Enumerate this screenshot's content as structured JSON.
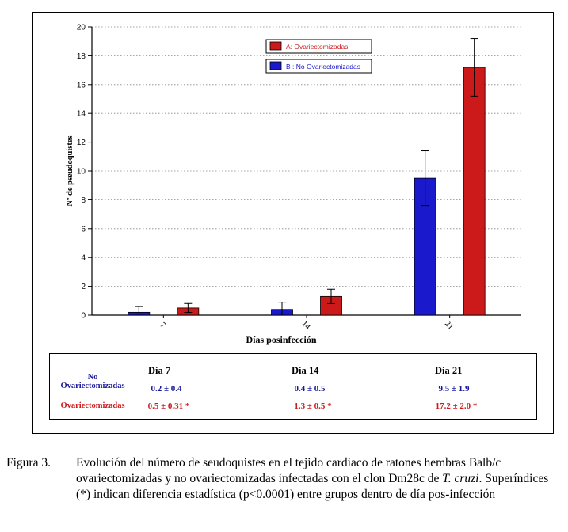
{
  "chart_data": {
    "type": "bar",
    "categories": [
      "7",
      "14",
      "21"
    ],
    "series": [
      {
        "name": "B : No Ovariectomizadas",
        "color": "#1a1acc",
        "values": [
          0.2,
          0.4,
          9.5
        ],
        "errors": [
          0.4,
          0.5,
          1.9
        ]
      },
      {
        "name": "A: Ovariectomizadas",
        "color": "#cc1a1a",
        "values": [
          0.5,
          1.3,
          17.2
        ],
        "errors": [
          0.31,
          0.5,
          2.0
        ]
      }
    ],
    "xlabel": "Días posinfección",
    "ylabel": "Nº de pseudoquistes",
    "ylim": [
      0,
      20
    ],
    "yticks": [
      "0",
      "2",
      "4",
      "6",
      "8",
      "10",
      "12",
      "14",
      "16",
      "18",
      "20"
    ],
    "grid": true,
    "legend_position": "top-right",
    "legend": [
      "A: Ovariectomizadas",
      "B : No Ovariectomizadas"
    ]
  },
  "stats_table": {
    "headers": [
      "Dia 7",
      "Dia 14",
      "Dia 21"
    ],
    "rows": [
      {
        "label_line1": "No",
        "label_line2": "Ovariectomizadas",
        "color": "#1a1a99",
        "cells": [
          "0.2 ± 0.4",
          "0.4 ± 0.5",
          "9.5 ± 1.9"
        ]
      },
      {
        "label": "Ovariectomizadas",
        "color": "#cc1a1a",
        "cells": [
          "0.5 ± 0.31 *",
          "1.3 ± 0.5 *",
          "17.2 ± 2.0 *"
        ]
      }
    ]
  },
  "caption": {
    "label": "Figura 3.",
    "text_part1": "Evolución del número de seudoquistes en el tejido cardiaco de ratones hembras Balb/c ovariectomizadas y no ovariectomizadas infectadas con el clon Dm28c de ",
    "italic": "T. cruzi",
    "text_part2": ". Superíndices (*) indican diferencia estadística (p<0.0001) entre grupos dentro de día pos-infección"
  }
}
